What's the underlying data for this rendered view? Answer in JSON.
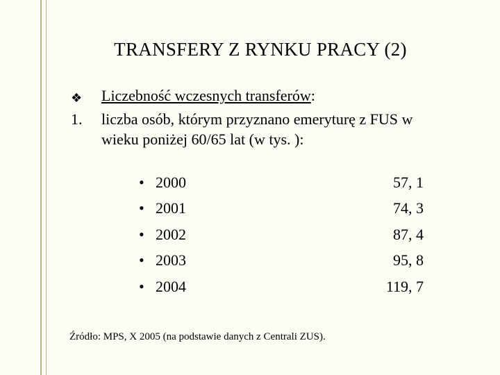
{
  "title": "TRANSFERY Z RYNKU PRACY (2)",
  "bullet_glyph": "❖",
  "heading_label": "Liczebność wczesnych transferów",
  "heading_suffix": ":",
  "point_marker": "1.",
  "point_text": "liczba osób, którym przyznano emeryturę z FUS w wieku poniżej 60/65 lat (w tys. ):",
  "rows": [
    {
      "year": "2000",
      "value": "57, 1"
    },
    {
      "year": "2001",
      "value": "74, 3"
    },
    {
      "year": "2002",
      "value": "87, 4"
    },
    {
      "year": "2003",
      "value": "95, 8"
    },
    {
      "year": "2004",
      "value": "119, 7"
    }
  ],
  "dot_glyph": "•",
  "source": "Źródło: MPS, X 2005 (na podstawie danych z Centrali ZUS).",
  "colors": {
    "bg": "#fdfcf5",
    "text": "#000000",
    "rule": "#b8b088"
  },
  "fonts": {
    "title_pt": 27,
    "body_pt": 22,
    "source_pt": 15,
    "family": "Times New Roman"
  }
}
